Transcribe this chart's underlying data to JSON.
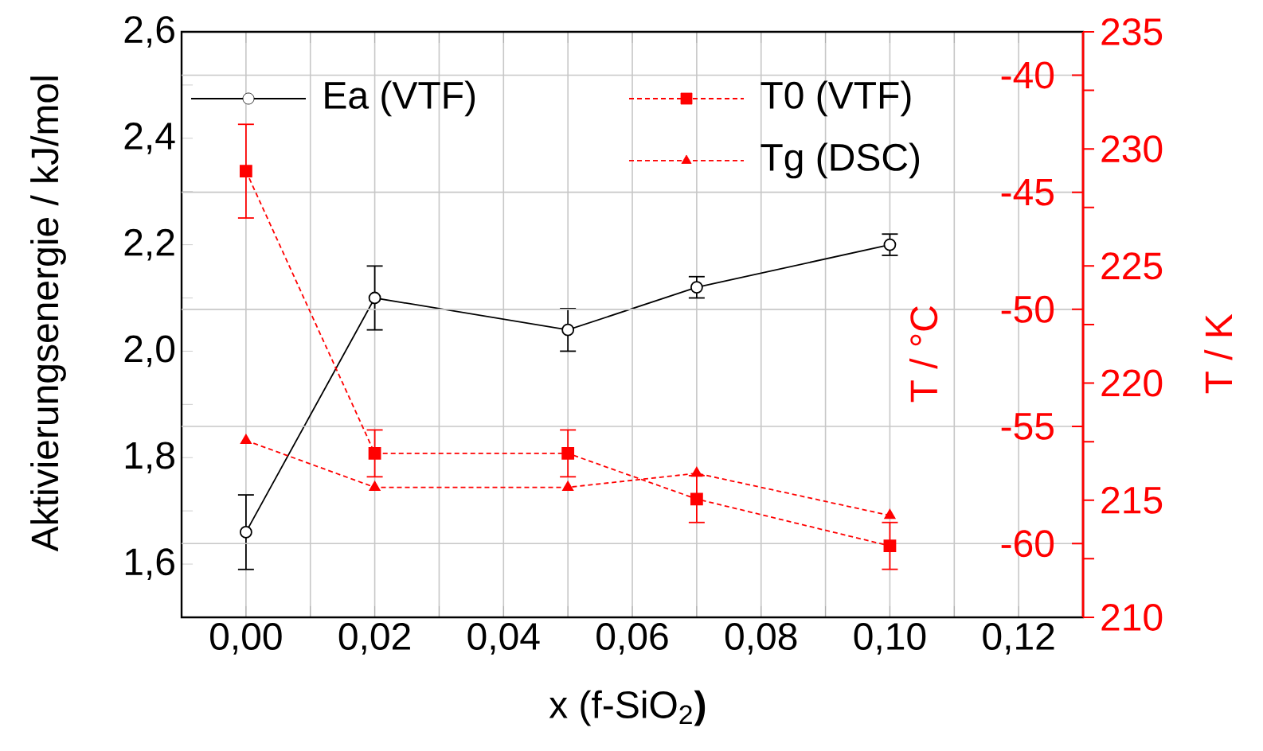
{
  "chart_data": {
    "type": "line",
    "xlabel": "x (f-SiO$_{2}$**)**",
    "ylabel": "Aktivierungsenergie / kJ/mol",
    "y2label": "T / °C",
    "y3label": "T / K",
    "x": [
      0,
      0.02,
      0.05,
      0.07,
      0.1
    ],
    "xlim": [
      -0.01,
      0.13
    ],
    "xticks": [
      {
        "value": 0,
        "label": "0,00"
      },
      {
        "value": 0.02,
        "label": "0,02"
      },
      {
        "value": 0.04,
        "label": "0,04"
      },
      {
        "value": 0.06,
        "label": "0,06"
      },
      {
        "value": 0.08,
        "label": "0,08"
      },
      {
        "value": 0.1,
        "label": "0,10"
      },
      {
        "value": 0.12,
        "label": "0,12"
      },
      {
        "value": -0.01,
        "label": null
      },
      {
        "value": 0.01,
        "label": null
      },
      {
        "value": 0.03,
        "label": null
      },
      {
        "value": 0.05,
        "label": null
      },
      {
        "value": 0.07,
        "label": null
      },
      {
        "value": 0.09,
        "label": null
      },
      {
        "value": 0.11,
        "label": null
      }
    ],
    "ylim": [
      1.5,
      2.6
    ],
    "yticks": [
      {
        "value": 1.6,
        "label": "1,6"
      },
      {
        "value": 1.8,
        "label": "1,8"
      },
      {
        "value": 2.0,
        "label": "2,0"
      },
      {
        "value": 2.2,
        "label": "2,2"
      },
      {
        "value": 2.4,
        "label": "2,4"
      },
      {
        "value": 2.6,
        "label": "2,6"
      },
      {
        "value": 1.7,
        "label": null
      },
      {
        "value": 1.9,
        "label": null
      },
      {
        "value": 2.1,
        "label": null
      },
      {
        "value": 2.3,
        "label": null
      },
      {
        "value": 2.5,
        "label": null
      }
    ],
    "y2lim": [
      -63.15,
      -38.15
    ],
    "y2ticks": [
      -60,
      -55,
      -50,
      -45,
      -40
    ],
    "y3lim": [
      210,
      235
    ],
    "y3ticks": [
      210,
      215,
      220,
      225,
      230,
      235,
      {
        "value": 212.5,
        "label": null
      },
      {
        "value": 217.5,
        "label": null
      },
      {
        "value": 222.5,
        "label": null
      },
      {
        "value": 227.5,
        "label": null
      },
      {
        "value": 232.5,
        "label": null
      }
    ],
    "grid": true,
    "legend": "top",
    "series": [
      {
        "name": "Ea (VTF)",
        "color": "#000000",
        "values": [
          1.66,
          2.1,
          2.04,
          2.12,
          2.2
        ],
        "errors": [
          0.07,
          0.06,
          0.04,
          0.02,
          0.02
        ],
        "marker": "circle",
        "line_style": "solid"
      },
      {
        "name": "T0 (VTF)",
        "color": "#ff0000",
        "axis": "y2",
        "values": [
          -44.1,
          -56.15,
          -56.15,
          -58.1,
          -60.1
        ],
        "errors": [
          2,
          1,
          1,
          1,
          1
        ],
        "marker": "square",
        "line_style": "dashed"
      },
      {
        "name": "Tg (DSC)",
        "color": "#ff0000",
        "axis": "y2",
        "values": [
          -55.6,
          -57.6,
          -57.6,
          -57.0,
          -58.8
        ],
        "marker": "triangle",
        "line_style": "dashed"
      }
    ]
  }
}
